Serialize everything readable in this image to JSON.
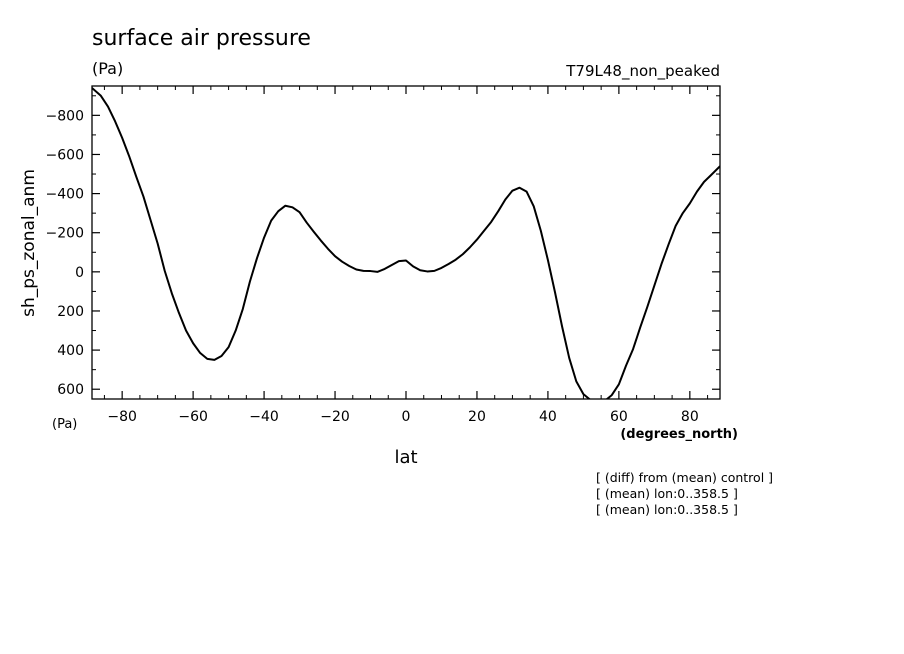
{
  "chart_data": {
    "type": "line",
    "title": "surface air pressure",
    "title_units": "(Pa)",
    "experiment": "T79L48_non_peaked",
    "xlabel": "lat",
    "x_units": "(degrees_north)",
    "ylabel": "sh_ps_zonal_anm",
    "y_units": "(Pa)",
    "xlim": [
      -88.5,
      88.5
    ],
    "ylim": [
      650,
      -950
    ],
    "y_inverted": true,
    "grid": false,
    "x_ticks": [
      -80,
      -60,
      -40,
      -20,
      0,
      20,
      40,
      60,
      80
    ],
    "x_tick_labels": [
      "−80",
      "−60",
      "−40",
      "−20",
      "0",
      "20",
      "40",
      "60",
      "80"
    ],
    "y_ticks": [
      -800,
      -600,
      -400,
      -200,
      0,
      200,
      400,
      600
    ],
    "y_tick_labels": [
      "−800",
      "−600",
      "−400",
      "−200",
      "0",
      "200",
      "400",
      "600"
    ],
    "series": [
      {
        "color": "#000000",
        "x": [
          -88.5,
          -86,
          -84,
          -82,
          -80,
          -78,
          -76,
          -74,
          -72,
          -70,
          -68,
          -66,
          -64,
          -62,
          -60,
          -58,
          -56,
          -54,
          -52,
          -50,
          -48,
          -46,
          -44,
          -42,
          -40,
          -38,
          -36,
          -34,
          -32,
          -30,
          -28,
          -26,
          -24,
          -22,
          -20,
          -18,
          -16,
          -14,
          -12,
          -10,
          -8,
          -6,
          -4,
          -2,
          0,
          2,
          4,
          6,
          8,
          10,
          12,
          14,
          16,
          18,
          20,
          22,
          24,
          26,
          28,
          30,
          32,
          34,
          36,
          38,
          40,
          42,
          44,
          46,
          48,
          50,
          52,
          54,
          56,
          58,
          60,
          62,
          64,
          66,
          68,
          70,
          72,
          74,
          76,
          78,
          80,
          82,
          84,
          86,
          88.5
        ],
        "y": [
          -940,
          -900,
          -845,
          -770,
          -685,
          -590,
          -485,
          -385,
          -265,
          -145,
          -5,
          110,
          210,
          300,
          365,
          415,
          445,
          450,
          430,
          385,
          300,
          190,
          50,
          -70,
          -175,
          -262,
          -310,
          -338,
          -330,
          -305,
          -252,
          -205,
          -160,
          -118,
          -80,
          -52,
          -30,
          -12,
          -5,
          -4,
          0,
          -15,
          -35,
          -55,
          -58,
          -28,
          -8,
          -2,
          -5,
          -20,
          -40,
          -62,
          -90,
          -125,
          -165,
          -210,
          -255,
          -310,
          -370,
          -415,
          -430,
          -410,
          -335,
          -210,
          -60,
          105,
          280,
          440,
          560,
          625,
          655,
          670,
          660,
          630,
          575,
          480,
          395,
          285,
          180,
          70,
          -40,
          -140,
          -235,
          -300,
          -350,
          -410,
          -460,
          -495,
          -540
        ]
      }
    ],
    "annotations": [
      "[ (diff) from (mean) control ]",
      "[ (mean) lon:0..358.5 ]",
      "[ (mean) lon:0..358.5 ]"
    ]
  }
}
